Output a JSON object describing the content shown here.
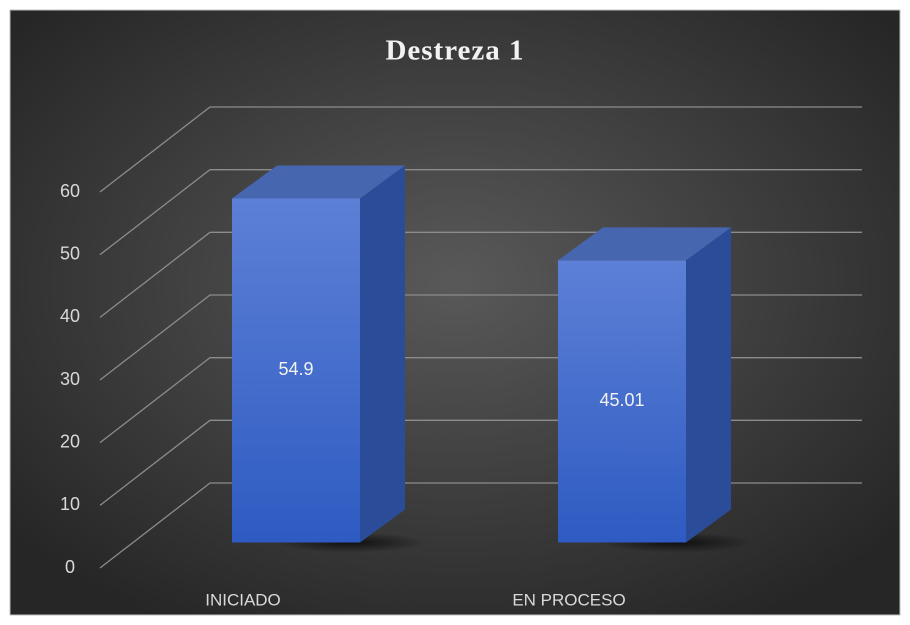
{
  "chart_data": {
    "type": "bar3d",
    "title": "Destreza 1",
    "categories": [
      "INICIADO",
      "EN PROCESO"
    ],
    "values": [
      54.9,
      45.01
    ],
    "color": "#4a72d0",
    "ylim": [
      0,
      60
    ],
    "yticks": [
      0,
      10,
      20,
      30,
      40,
      50,
      60
    ],
    "grid": true
  }
}
